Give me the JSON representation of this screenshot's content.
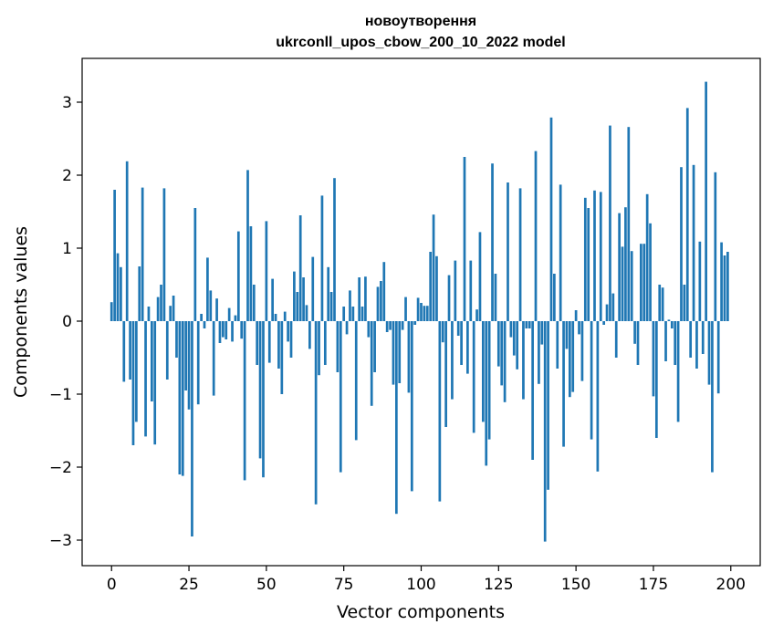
{
  "chart_data": {
    "type": "bar",
    "title_lines": [
      "новоутворення",
      "ukrconll_upos_cbow_200_10_2022 model"
    ],
    "xlabel": "Vector components",
    "ylabel": "Components values",
    "xlim": [
      -9.5,
      209.5
    ],
    "ylim": [
      -3.35,
      3.6
    ],
    "xticks": [
      0,
      25,
      50,
      75,
      100,
      125,
      150,
      175,
      200
    ],
    "xtick_labels": [
      "0",
      "25",
      "50",
      "75",
      "100",
      "125",
      "150",
      "175",
      "200"
    ],
    "yticks": [
      -3,
      -2,
      -1,
      0,
      1,
      2,
      3
    ],
    "ytick_labels": [
      "−3",
      "−2",
      "−1",
      "0",
      "1",
      "2",
      "3"
    ],
    "bar_color": "#1f77b4",
    "grid": false,
    "x": [
      0,
      1,
      2,
      3,
      4,
      5,
      6,
      7,
      8,
      9,
      10,
      11,
      12,
      13,
      14,
      15,
      16,
      17,
      18,
      19,
      20,
      21,
      22,
      23,
      24,
      25,
      26,
      27,
      28,
      29,
      30,
      31,
      32,
      33,
      34,
      35,
      36,
      37,
      38,
      39,
      40,
      41,
      42,
      43,
      44,
      45,
      46,
      47,
      48,
      49,
      50,
      51,
      52,
      53,
      54,
      55,
      56,
      57,
      58,
      59,
      60,
      61,
      62,
      63,
      64,
      65,
      66,
      67,
      68,
      69,
      70,
      71,
      72,
      73,
      74,
      75,
      76,
      77,
      78,
      79,
      80,
      81,
      82,
      83,
      84,
      85,
      86,
      87,
      88,
      89,
      90,
      91,
      92,
      93,
      94,
      95,
      96,
      97,
      98,
      99,
      100,
      101,
      102,
      103,
      104,
      105,
      106,
      107,
      108,
      109,
      110,
      111,
      112,
      113,
      114,
      115,
      116,
      117,
      118,
      119,
      120,
      121,
      122,
      123,
      124,
      125,
      126,
      127,
      128,
      129,
      130,
      131,
      132,
      133,
      134,
      135,
      136,
      137,
      138,
      139,
      140,
      141,
      142,
      143,
      144,
      145,
      146,
      147,
      148,
      149,
      150,
      151,
      152,
      153,
      154,
      155,
      156,
      157,
      158,
      159,
      160,
      161,
      162,
      163,
      164,
      165,
      166,
      167,
      168,
      169,
      170,
      171,
      172,
      173,
      174,
      175,
      176,
      177,
      178,
      179,
      180,
      181,
      182,
      183,
      184,
      185,
      186,
      187,
      188,
      189,
      190,
      191,
      192,
      193,
      194,
      195,
      196,
      197,
      198,
      199
    ],
    "values": [
      0.26,
      1.8,
      0.93,
      0.74,
      -0.83,
      2.19,
      -0.8,
      -1.7,
      -1.38,
      0.75,
      1.83,
      -1.58,
      0.2,
      -1.1,
      -1.69,
      0.33,
      0.5,
      1.82,
      -0.8,
      0.21,
      0.35,
      -0.5,
      -2.1,
      -2.12,
      -0.95,
      -1.21,
      -2.95,
      1.55,
      -1.14,
      0.1,
      -0.1,
      0.87,
      0.42,
      -1.02,
      0.31,
      -0.3,
      -0.22,
      -0.25,
      0.18,
      -0.28,
      0.08,
      1.23,
      -0.24,
      -2.18,
      2.07,
      1.3,
      0.5,
      -0.6,
      -1.88,
      -2.14,
      1.37,
      -0.57,
      0.58,
      0.1,
      -0.65,
      -1.0,
      0.13,
      -0.28,
      -0.5,
      0.68,
      0.4,
      1.45,
      0.6,
      0.22,
      -0.38,
      0.88,
      -2.51,
      -0.74,
      1.72,
      -0.6,
      0.74,
      0.4,
      1.96,
      -0.7,
      -2.07,
      0.2,
      -0.18,
      0.42,
      0.2,
      -1.63,
      0.6,
      0.2,
      0.61,
      -0.22,
      -1.16,
      -0.7,
      0.47,
      0.55,
      0.81,
      -0.15,
      -0.12,
      -0.87,
      -2.64,
      -0.85,
      -0.12,
      0.33,
      -0.98,
      -2.33,
      -0.05,
      0.32,
      0.25,
      0.21,
      0.21,
      0.95,
      1.46,
      0.89,
      -2.47,
      -0.29,
      -1.45,
      0.63,
      -1.07,
      0.83,
      -0.2,
      -0.6,
      2.25,
      -0.72,
      0.83,
      -1.53,
      0.16,
      1.22,
      -1.38,
      -1.98,
      -1.62,
      2.16,
      0.65,
      -0.62,
      -0.88,
      -1.11,
      1.9,
      -0.22,
      -0.47,
      -0.66,
      1.82,
      -1.07,
      -0.1,
      -0.1,
      -1.9,
      2.33,
      -0.86,
      -0.32,
      -3.02,
      -2.31,
      2.79,
      0.65,
      -0.65,
      1.87,
      -1.72,
      -0.38,
      -1.04,
      -0.97,
      0.15,
      -0.18,
      -0.82,
      1.69,
      1.55,
      -1.62,
      1.79,
      -2.06,
      1.77,
      -0.05,
      0.23,
      2.68,
      0.38,
      -0.5,
      1.48,
      1.02,
      1.56,
      2.66,
      0.96,
      -0.31,
      -0.6,
      1.06,
      1.06,
      1.74,
      1.34,
      -1.03,
      -1.6,
      0.5,
      0.46,
      -0.55,
      0.02,
      -0.1,
      -0.6,
      -1.38,
      2.11,
      0.5,
      2.92,
      -0.5,
      2.14,
      -0.65,
      1.09,
      -0.45,
      3.28,
      -0.87,
      -2.07,
      2.04,
      -0.99,
      1.08,
      0.9,
      0.95
    ]
  }
}
